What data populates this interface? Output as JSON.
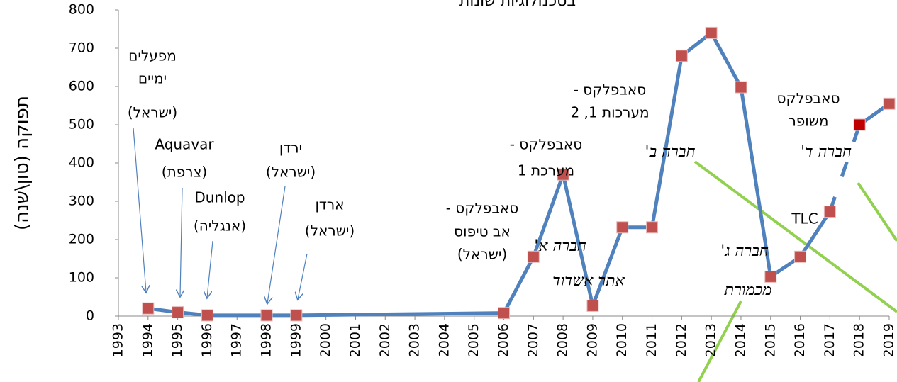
{
  "chart_data": {
    "type": "line",
    "title": "בטכנולוגיות שונות",
    "y_label": "תפוקה (טון\\שנה)",
    "x": [
      1994,
      1995,
      1996,
      1998,
      1999,
      2006,
      2007,
      2008,
      2009,
      2010,
      2011,
      2012,
      2013,
      2014,
      2015,
      2016,
      2017,
      2018,
      2019
    ],
    "series": [
      {
        "name": "תפוקה",
        "color": "#4f81bd",
        "marker_color": "#c0504d",
        "values": [
          20,
          10,
          2,
          2,
          2,
          8,
          155,
          370,
          27,
          232,
          232,
          680,
          740,
          598,
          103,
          155,
          273,
          500,
          555
        ]
      }
    ],
    "dashed_after": 2017,
    "highlight": {
      "x": 2018,
      "color": "#c00000"
    },
    "xlim": [
      1993,
      2019
    ],
    "xticks": [
      1993,
      1994,
      1995,
      1996,
      1997,
      1998,
      1999,
      2000,
      2001,
      2002,
      2003,
      2004,
      2005,
      2006,
      2007,
      2008,
      2009,
      2010,
      2011,
      2012,
      2013,
      2014,
      2015,
      2016,
      2017,
      2018,
      2019
    ],
    "ylim": [
      0,
      800
    ],
    "yticks": [
      0,
      100,
      200,
      300,
      400,
      500,
      600,
      700,
      800
    ],
    "grid": false,
    "annotations": [
      {
        "lines": [
          "מפעלים",
          "ימיים",
          "(ישראל)"
        ]
      },
      {
        "lines": [
          "Aquavar",
          "(צרפת)"
        ]
      },
      {
        "lines": [
          "Dunlop",
          "(אנגליה)"
        ]
      },
      {
        "lines": [
          "ירדן",
          "(ישראל)"
        ]
      },
      {
        "lines": [
          "ארדן",
          "(ישראל)"
        ]
      },
      {
        "lines": [
          "סאבפלקס -",
          "אב טיפוס",
          "(ישראל)"
        ]
      },
      {
        "lines": [
          "סאבפלקס -",
          "מערכת 1"
        ]
      },
      {
        "lines": [
          "סאבפלקס -",
          "מערכות 1, 2"
        ]
      },
      {
        "lines": [
          "סאבפלקס",
          "משופר"
        ]
      },
      {
        "lines": [
          "TLC"
        ]
      }
    ],
    "handwritten": [
      "חברה א'",
      "אתר אשדוד",
      "חברה ב'",
      "חברה ג'",
      "מכמורת",
      "חברה ד'"
    ]
  }
}
